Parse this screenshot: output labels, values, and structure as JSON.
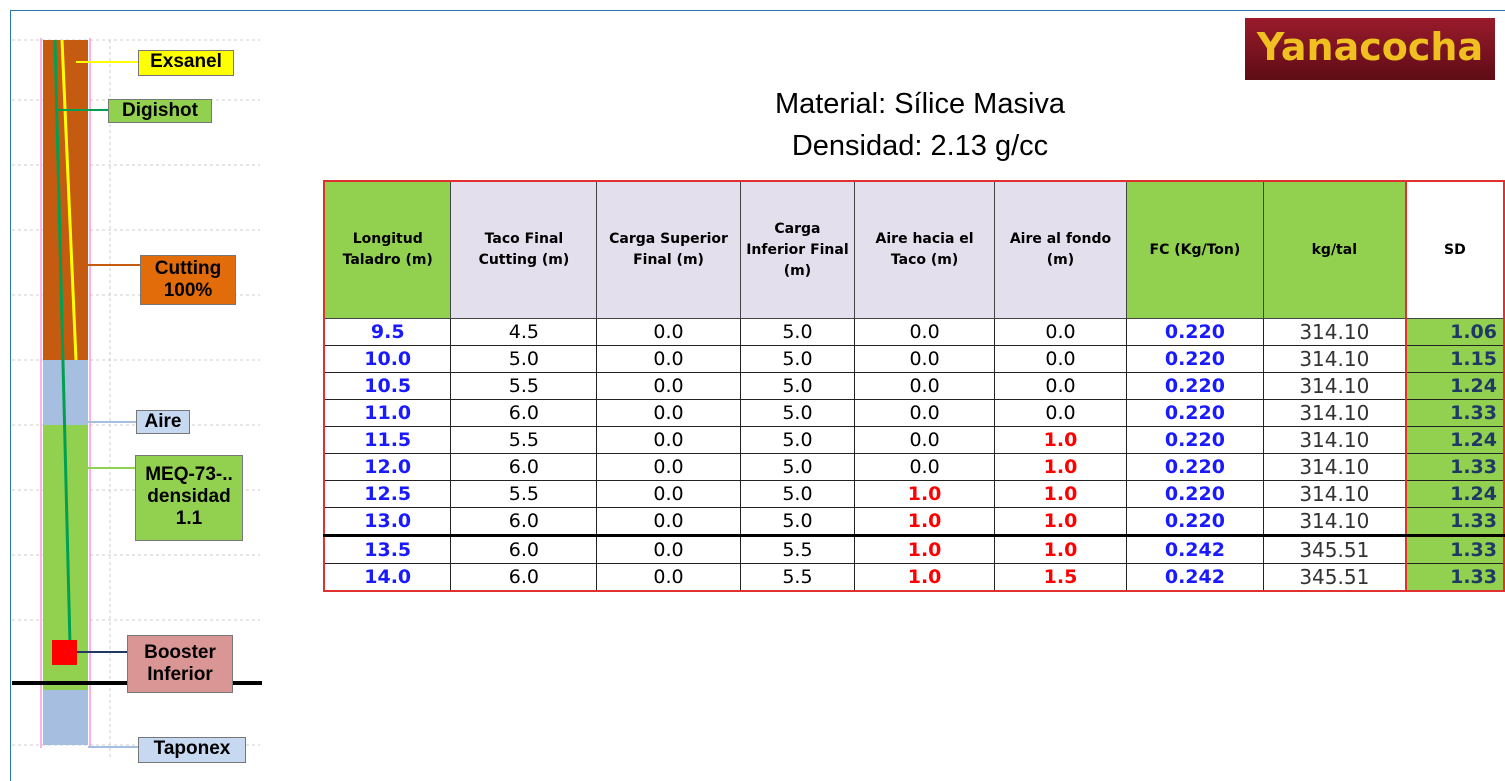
{
  "diagram": {
    "labels": {
      "exsanel": "Exsanel",
      "digishot": "Digishot",
      "cutting": "Cutting 100%",
      "aire": "Aire",
      "meq": "MEQ-73-..densidad 1.1",
      "booster": "Booster Inferior",
      "taponex": "Taponex"
    }
  },
  "header": {
    "logo": "Yanacocha",
    "title": "Material: Sílice Masiva",
    "subtitle": "Densidad: 2.13 g/cc"
  },
  "table": {
    "columns": [
      "Longitud Taladro (m)",
      "Taco Final Cutting (m)",
      "Carga Superior Final (m)",
      "Carga Inferior Final (m)",
      "Aire hacia el Taco (m)",
      "Aire al fondo (m)",
      "FC (Kg/Ton)",
      "kg/tal",
      "SD"
    ],
    "rows": [
      [
        "9.5",
        "4.5",
        "0.0",
        "5.0",
        "0.0",
        "0.0",
        "0.220",
        "314.10",
        "1.06"
      ],
      [
        "10.0",
        "5.0",
        "0.0",
        "5.0",
        "0.0",
        "0.0",
        "0.220",
        "314.10",
        "1.15"
      ],
      [
        "10.5",
        "5.5",
        "0.0",
        "5.0",
        "0.0",
        "0.0",
        "0.220",
        "314.10",
        "1.24"
      ],
      [
        "11.0",
        "6.0",
        "0.0",
        "5.0",
        "0.0",
        "0.0",
        "0.220",
        "314.10",
        "1.33"
      ],
      [
        "11.5",
        "5.5",
        "0.0",
        "5.0",
        "0.0",
        "1.0",
        "0.220",
        "314.10",
        "1.24"
      ],
      [
        "12.0",
        "6.0",
        "0.0",
        "5.0",
        "0.0",
        "1.0",
        "0.220",
        "314.10",
        "1.33"
      ],
      [
        "12.5",
        "5.5",
        "0.0",
        "5.0",
        "1.0",
        "1.0",
        "0.220",
        "314.10",
        "1.24"
      ],
      [
        "13.0",
        "6.0",
        "0.0",
        "5.0",
        "1.0",
        "1.0",
        "0.220",
        "314.10",
        "1.33"
      ],
      [
        "13.5",
        "6.0",
        "0.0",
        "5.5",
        "1.0",
        "1.0",
        "0.242",
        "345.51",
        "1.33"
      ],
      [
        "14.0",
        "6.0",
        "0.0",
        "5.5",
        "1.0",
        "1.5",
        "0.242",
        "345.51",
        "1.33"
      ]
    ]
  }
}
